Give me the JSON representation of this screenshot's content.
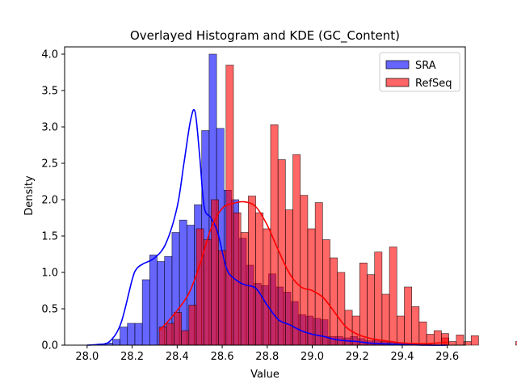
{
  "chart_data": {
    "type": "bar",
    "title": "Overlayed Histogram and KDE (GC_Content)",
    "xlabel": "Value",
    "ylabel": "Density",
    "xlim": [
      27.9,
      29.68
    ],
    "ylim": [
      0,
      4.1
    ],
    "xticks": [
      "28.0",
      "28.2",
      "28.4",
      "28.6",
      "28.8",
      "29.0",
      "29.2",
      "29.4",
      "29.6"
    ],
    "yticks": [
      "0.0",
      "0.5",
      "1.0",
      "1.5",
      "2.0",
      "2.5",
      "3.0",
      "3.5",
      "4.0"
    ],
    "grid": false,
    "legend_position": "top-right",
    "series": [
      {
        "name": "SRA",
        "color": "#0000ff",
        "kind": "histogram",
        "bin_width": 0.033,
        "bin_start": 28.08,
        "values": [
          0.03,
          0.08,
          0.25,
          0.3,
          0.3,
          0.9,
          1.24,
          1.15,
          1.22,
          1.55,
          1.72,
          1.65,
          1.93,
          2.95,
          4.0,
          2.98,
          2.13,
          2.0,
          1.47,
          1.1,
          0.85,
          0.82,
          0.98,
          0.8,
          0.73,
          0.6,
          0.42,
          0.4,
          0.37,
          0.35,
          0.12,
          0.12,
          0.1,
          0.12,
          0.09,
          0.06,
          0.07,
          0.05,
          0.04,
          0.03,
          0.02,
          0.02,
          0.01,
          0.01
        ],
        "kde": {
          "x": [
            28.0,
            28.05,
            28.1,
            28.15,
            28.2,
            28.22,
            28.25,
            28.3,
            28.35,
            28.4,
            28.43,
            28.46,
            28.48,
            28.5,
            28.52,
            28.55,
            28.58,
            28.62,
            28.66,
            28.7,
            28.75,
            28.8,
            28.85,
            28.9,
            28.95,
            29.0,
            29.05,
            29.1,
            29.15,
            29.2,
            29.25,
            29.3,
            29.4,
            29.5,
            29.6
          ],
          "y": [
            0.0,
            0.01,
            0.05,
            0.3,
            0.9,
            1.05,
            1.12,
            1.2,
            1.4,
            1.9,
            2.5,
            3.1,
            3.2,
            2.6,
            1.9,
            1.75,
            1.55,
            1.05,
            0.9,
            0.83,
            0.78,
            0.55,
            0.35,
            0.28,
            0.2,
            0.15,
            0.12,
            0.08,
            0.06,
            0.05,
            0.03,
            0.02,
            0.01,
            0.0,
            0.0
          ]
        }
      },
      {
        "name": "RefSeq",
        "color": "#ff0000",
        "kind": "histogram",
        "bin_width": 0.033,
        "bin_start": 28.32,
        "values": [
          0.25,
          0.3,
          0.45,
          0.2,
          0.55,
          1.6,
          1.45,
          2.0,
          1.3,
          3.85,
          1.82,
          1.55,
          2.05,
          1.82,
          1.6,
          3.03,
          2.55,
          1.86,
          2.62,
          2.06,
          1.6,
          1.96,
          1.45,
          1.2,
          1.0,
          0.48,
          0.4,
          1.13,
          0.97,
          1.28,
          0.7,
          1.35,
          0.4,
          0.8,
          0.53,
          0.32,
          0.15,
          0.2,
          0.1,
          0.05,
          0.14,
          0.05,
          0.13,
          0.0,
          0.0,
          0.0,
          0.0,
          0.0,
          0.05,
          0.0,
          0.0,
          0.0,
          0.0,
          0.0,
          0.0,
          0.0,
          0.0,
          0.0,
          0.0,
          0.0,
          0.0,
          0.0,
          0.0,
          0.0,
          0.0,
          0.0,
          0.0,
          0.0,
          0.0,
          0.0,
          0.0,
          0.0,
          0.0,
          0.0,
          0.0,
          0.0,
          0.0,
          0.0,
          0.0,
          0.0
        ],
        "extra_bins": [
          {
            "x": 29.59,
            "value": 0.16
          }
        ],
        "kde": {
          "x": [
            28.32,
            28.38,
            28.45,
            28.5,
            28.55,
            28.6,
            28.65,
            28.7,
            28.75,
            28.8,
            28.85,
            28.9,
            28.95,
            29.0,
            29.05,
            29.1,
            29.15,
            29.2,
            29.25,
            29.3,
            29.35,
            29.4,
            29.5,
            29.6
          ],
          "y": [
            0.2,
            0.4,
            0.7,
            1.1,
            1.6,
            1.88,
            1.95,
            1.97,
            1.9,
            1.65,
            1.3,
            0.98,
            0.8,
            0.75,
            0.65,
            0.45,
            0.25,
            0.15,
            0.1,
            0.07,
            0.05,
            0.03,
            0.02,
            0.04
          ]
        }
      }
    ]
  }
}
